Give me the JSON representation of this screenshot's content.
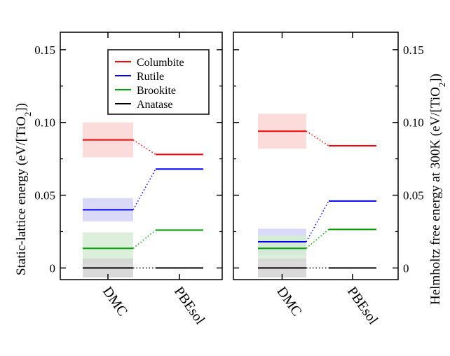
{
  "chart_data": [
    {
      "type": "line",
      "panel": "left",
      "categories": [
        "DMC",
        "PBEsol"
      ],
      "ylabel_main": "Static-lattice energy (eV/[TiO",
      "ylabel_sub": "2",
      "ylabel_end": "])",
      "yticks": [
        "0",
        "0.05",
        "0.10",
        "0.15"
      ],
      "ytick_values": [
        0,
        0.05,
        0.1,
        0.15
      ],
      "ylim": [
        -0.008,
        0.162
      ],
      "series": [
        {
          "name": "Columbite",
          "color": "#ff0000",
          "band_color": "#fbd5d5",
          "dmc": 0.088,
          "dmc_err": 0.012,
          "pbesol": 0.078
        },
        {
          "name": "Rutile",
          "color": "#0000ee",
          "band_color": "#d3d3f7",
          "dmc": 0.04,
          "dmc_err": 0.008,
          "pbesol": 0.068
        },
        {
          "name": "Brookite",
          "color": "#00a000",
          "band_color": "#d5ecd5",
          "dmc": 0.0135,
          "dmc_err": 0.011,
          "pbesol": 0.026
        },
        {
          "name": "Anatase",
          "color": "#000000",
          "band_color": "#d3d3d3",
          "dmc": 0.0,
          "dmc_err": 0.0065,
          "pbesol": 0.0
        }
      ],
      "legend": {
        "placement": "top-right",
        "entries": [
          "Columbite",
          "Rutile",
          "Brookite",
          "Anatase"
        ]
      }
    },
    {
      "type": "line",
      "panel": "right",
      "categories": [
        "DMC",
        "PBEsol"
      ],
      "ylabel_main": "Helmholtz free energy at 300K (eV/[TiO",
      "ylabel_sub": "2",
      "ylabel_end": "])",
      "yticks": [
        "0",
        "0.05",
        "0.10",
        "0.15"
      ],
      "ytick_values": [
        0,
        0.05,
        0.1,
        0.15
      ],
      "ylim": [
        -0.008,
        0.162
      ],
      "series": [
        {
          "name": "Columbite",
          "color": "#ff0000",
          "band_color": "#fbd5d5",
          "dmc": 0.094,
          "dmc_err": 0.012,
          "pbesol": 0.084
        },
        {
          "name": "Rutile",
          "color": "#0000ee",
          "band_color": "#d3d3f7",
          "dmc": 0.018,
          "dmc_err": 0.009,
          "pbesol": 0.046
        },
        {
          "name": "Brookite",
          "color": "#00a000",
          "band_color": "#d5ecd5",
          "dmc": 0.0135,
          "dmc_err": 0.009,
          "pbesol": 0.0265
        },
        {
          "name": "Anatase",
          "color": "#000000",
          "band_color": "#d3d3d3",
          "dmc": 0.0,
          "dmc_err": 0.0065,
          "pbesol": 0.0
        }
      ]
    }
  ]
}
